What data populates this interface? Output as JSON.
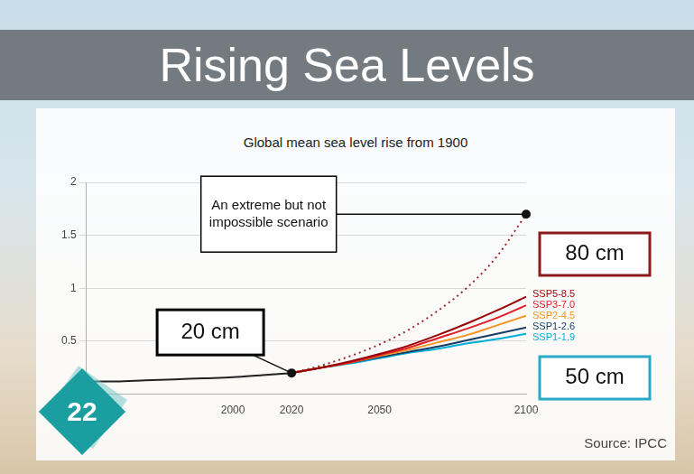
{
  "slide": {
    "title": "Rising Sea Levels",
    "number": "22",
    "source": "Source: IPCC"
  },
  "chart_data": {
    "type": "line",
    "title": "Global mean sea level rise from 1900",
    "x": [
      1950,
      1960,
      1970,
      1980,
      1990,
      2000,
      2010,
      2020,
      2030,
      2040,
      2050,
      2060,
      2070,
      2080,
      2090,
      2100
    ],
    "series": [
      {
        "color": "#222222",
        "line_style": "solid",
        "values": [
          0.12,
          0.12,
          0.13,
          0.14,
          0.15,
          0.16,
          0.18,
          0.2,
          null,
          null,
          null,
          null,
          null,
          null,
          null,
          null
        ]
      },
      {
        "name": "SSP5-8.5",
        "color": "#980002",
        "line_style": "solid",
        "values": [
          null,
          null,
          null,
          null,
          null,
          null,
          null,
          0.2,
          0.25,
          0.31,
          0.38,
          0.46,
          0.56,
          0.67,
          0.79,
          0.92
        ]
      },
      {
        "name": "SSP3-7.0",
        "color": "#e11d25",
        "line_style": "solid",
        "values": [
          null,
          null,
          null,
          null,
          null,
          null,
          null,
          0.2,
          0.25,
          0.3,
          0.37,
          0.44,
          0.53,
          0.62,
          0.72,
          0.84
        ]
      },
      {
        "name": "SSP2-4.5",
        "color": "#f69320",
        "line_style": "solid",
        "values": [
          null,
          null,
          null,
          null,
          null,
          null,
          null,
          0.2,
          0.25,
          0.3,
          0.36,
          0.42,
          0.49,
          0.56,
          0.65,
          0.74
        ]
      },
      {
        "name": "SSP1-2.6",
        "color": "#173c66",
        "line_style": "solid",
        "values": [
          null,
          null,
          null,
          null,
          null,
          null,
          null,
          0.2,
          0.25,
          0.3,
          0.35,
          0.4,
          0.45,
          0.51,
          0.57,
          0.63
        ]
      },
      {
        "name": "SSP1-1.9",
        "color": "#00add7",
        "line_style": "solid",
        "values": [
          null,
          null,
          null,
          null,
          null,
          null,
          null,
          0.2,
          0.25,
          0.29,
          0.34,
          0.39,
          0.43,
          0.48,
          0.52,
          0.57
        ]
      },
      {
        "color": "#9e2a2b",
        "line_style": "dotted",
        "values": [
          null,
          null,
          null,
          null,
          null,
          null,
          null,
          0.2,
          0.27,
          0.36,
          0.47,
          0.61,
          0.79,
          1.01,
          1.3,
          1.7
        ]
      }
    ],
    "xlim": [
      1950,
      2100
    ],
    "xticks": [
      2000,
      2020,
      2050,
      2100
    ],
    "ylim": [
      0,
      2
    ],
    "yticks": [
      0.5,
      1,
      1.5,
      2
    ],
    "grid": "y",
    "legend": "right",
    "annotations": [
      {
        "text": "An extreme but not impossible scenario",
        "x": 2100,
        "y": 1.7,
        "color": "#000000"
      },
      {
        "text": "20 cm",
        "x": 2020,
        "y": 0.2,
        "color": "#000000"
      },
      {
        "text": "80 cm",
        "color": "#8b1a1a"
      },
      {
        "text": "50 cm",
        "color": "#2aa8c4"
      }
    ]
  }
}
